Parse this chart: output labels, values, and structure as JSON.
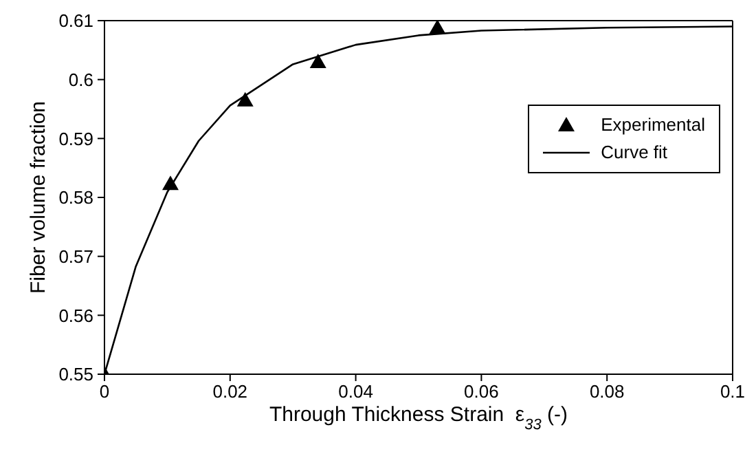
{
  "chart_data": {
    "type": "scatter",
    "xlabel": "Through Thickness Strain  ε$_{33}$ (-)",
    "ylabel": "Fiber volume fraction",
    "xlim": [
      0,
      0.1
    ],
    "xticks": [
      0,
      0.02,
      0.04,
      0.06,
      0.08,
      0.1
    ],
    "ylim": [
      0.55,
      0.61
    ],
    "yticks": [
      0.55,
      0.56,
      0.57,
      0.58,
      0.59,
      0.6,
      0.61
    ],
    "grid": false,
    "legend": "top right",
    "series": [
      {
        "name": "Experimental",
        "marker": "triangle",
        "color": "#000000",
        "x": [
          0,
          0.0105,
          0.0224,
          0.034,
          0.053
        ],
        "values": [
          0.55,
          0.5823,
          0.5965,
          0.603,
          0.6088
        ]
      },
      {
        "name": "Curve fit",
        "type": "line",
        "marker": "none",
        "line_style": "solid",
        "color": "#000000",
        "x": [
          0,
          0.005,
          0.01,
          0.015,
          0.02,
          0.03,
          0.04,
          0.05,
          0.06,
          0.08,
          0.1
        ],
        "values": [
          0.55,
          0.5683,
          0.5809,
          0.5896,
          0.5956,
          0.6026,
          0.6059,
          0.6075,
          0.6083,
          0.6088,
          0.609
        ]
      }
    ]
  }
}
